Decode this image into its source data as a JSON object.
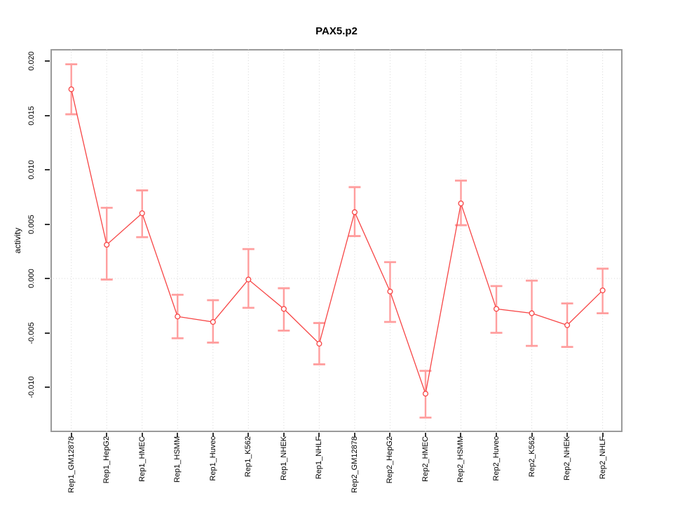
{
  "figure": {
    "title": "PAX5.p2",
    "ylabel": "activity"
  },
  "chart_data": {
    "type": "line",
    "title": "PAX5.p2",
    "xlabel": "",
    "ylabel": "activity",
    "legend": "none",
    "grid": "vertical-dotted-per-category",
    "zero_reference_line": "dotted",
    "marker": "open-circle",
    "error_bars": true,
    "categories": [
      "Rep1_GM12878",
      "Rep1_HepG2",
      "Rep1_HMEC",
      "Rep1_HSMM",
      "Rep1_Huvec",
      "Rep1_K562",
      "Rep1_NHEK",
      "Rep1_NHLF",
      "Rep2_GM12878",
      "Rep2_HepG2",
      "Rep2_HMEC",
      "Rep2_HSMM",
      "Rep2_Huvec",
      "Rep2_K562",
      "Rep2_NHEK",
      "Rep2_NHLF"
    ],
    "series": [
      {
        "name": "activity",
        "values": [
          0.0174,
          0.0031,
          0.006,
          -0.0035,
          -0.004,
          -0.0001,
          -0.0028,
          -0.006,
          0.0061,
          -0.0012,
          -0.0106,
          0.0069,
          -0.0028,
          -0.0032,
          -0.0043,
          -0.0011
        ],
        "error_low": [
          0.0151,
          -0.0001,
          0.0038,
          -0.0055,
          -0.0059,
          -0.0027,
          -0.0048,
          -0.0079,
          0.0039,
          -0.004,
          -0.0128,
          0.0049,
          -0.005,
          -0.0062,
          -0.0063,
          -0.0032
        ],
        "error_high": [
          0.0197,
          0.0065,
          0.0081,
          -0.0015,
          -0.002,
          0.0027,
          -0.0009,
          -0.0041,
          0.0084,
          0.0015,
          -0.0085,
          0.009,
          -0.0007,
          -0.0002,
          -0.0023,
          0.0009
        ]
      }
    ],
    "ylim": [
      -0.0141,
      0.0211
    ],
    "yticks": [
      0.02,
      0.015,
      0.01,
      0.005,
      0.0,
      -0.005,
      -0.01
    ],
    "ytick_labels": [
      "0.020",
      "0.015",
      "0.010",
      "0.005",
      "0.000",
      "-0.005",
      "-0.010"
    ],
    "colors": {
      "line": "#f74545",
      "marker": "#f74545",
      "error_bar": "#ff9e9e",
      "grid": "#d9d9d9",
      "zero_line": "#d9d9d9",
      "box": "#9a9a9a",
      "tick": "#333333",
      "text": "#000000"
    }
  }
}
